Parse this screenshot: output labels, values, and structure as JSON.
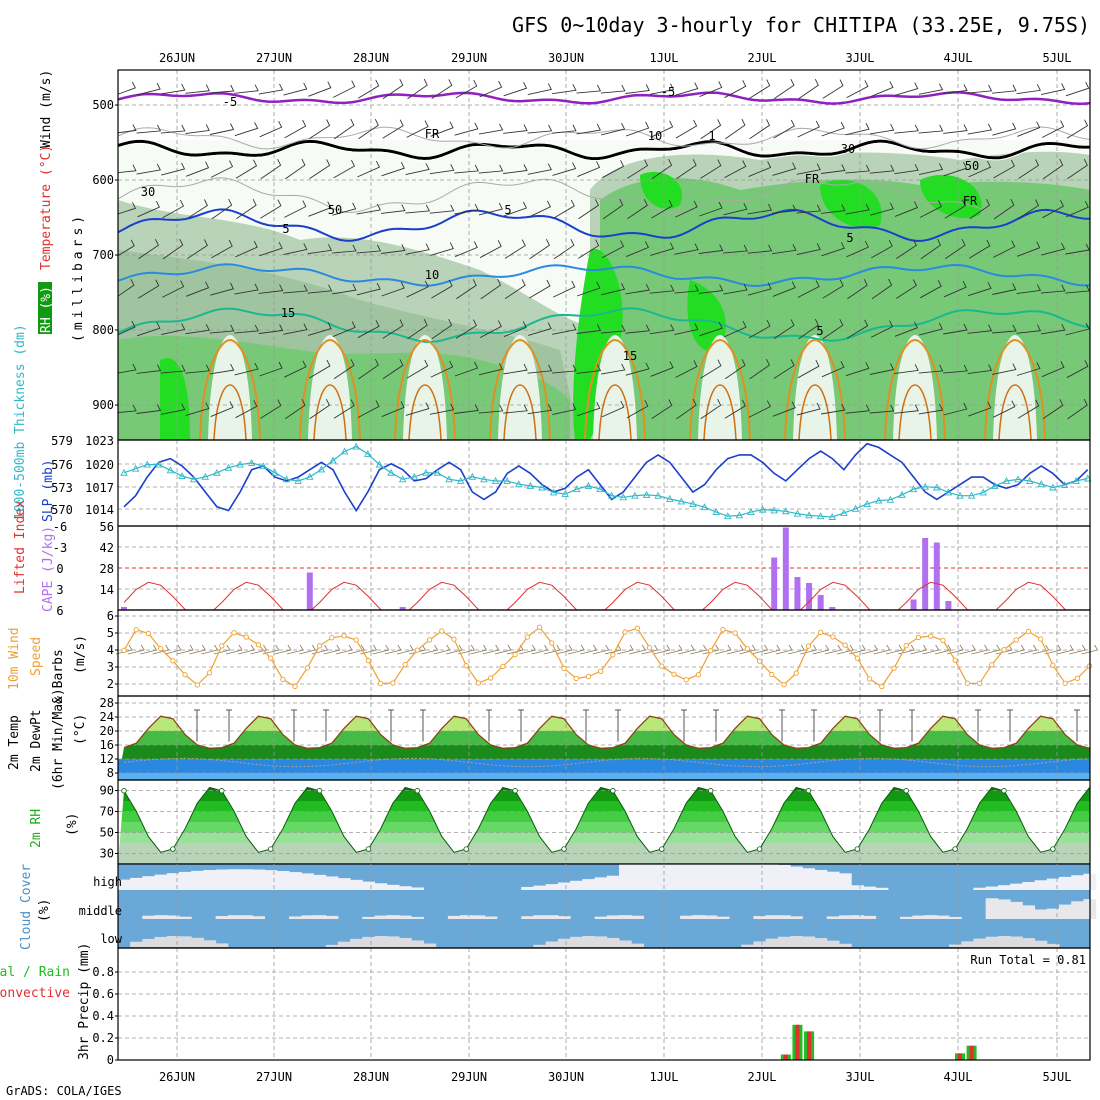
{
  "title": "GFS 0~10day 3-hourly for CHITIPA (33.25E, 9.75S)",
  "credit": "GrADS: COLA/IGES",
  "dates": [
    "26JUN",
    "27JUN",
    "28JUN",
    "29JUN",
    "30JUN",
    "1JUL",
    "2JUL",
    "3JUL",
    "4JUL",
    "5JUL"
  ],
  "colors": {
    "rh_light": "#e8f4e8",
    "rh_mid": "#b9d3b9",
    "rh_dark": "#77c977",
    "rh_bright": "#22dd22",
    "rh_deep": "#119911",
    "temp_purple": "#9020c0",
    "temp_blue1": "#1a3fcc",
    "temp_blue2": "#2a8ae0",
    "temp_teal": "#1ab890",
    "temp_orange": "#e09020",
    "slp": "#1a3fcc",
    "thickness": "#30b8c8",
    "cape": "#b070f0",
    "li": "#e03030",
    "wind10": "#f0a030",
    "cloud_blue": "#6aa8d8",
    "cloud_white": "#f0f0f8",
    "precip_total": "#22bb22",
    "precip_conv": "#e03030"
  },
  "panels": {
    "upper": {
      "ylabel": "(millibars)",
      "legend": [
        {
          "text": "Wind (m/s)",
          "color": "#000000"
        },
        {
          "text": "Temperature (°C)",
          "color": "#e03030"
        },
        {
          "text": "RH (%)",
          "color": "#119911"
        }
      ],
      "yticks": [
        "500",
        "600",
        "700",
        "800",
        "900"
      ],
      "contour_labels": [
        {
          "text": "-5",
          "color": "#9020c0"
        },
        {
          "text": "-5",
          "color": "#9020c0"
        },
        {
          "text": "FR",
          "color": "#000000"
        },
        {
          "text": "FR",
          "color": "#000000"
        },
        {
          "text": "FR",
          "color": "#000000"
        },
        {
          "text": "5",
          "color": "#1a3fcc"
        },
        {
          "text": "5",
          "color": "#1a3fcc"
        },
        {
          "text": "5",
          "color": "#1a3fcc"
        },
        {
          "text": "10",
          "color": "#2a8ae0"
        },
        {
          "text": "15",
          "color": "#1ab890"
        },
        {
          "text": "15",
          "color": "#1ab890"
        },
        {
          "text": "5",
          "color": "#1ab890"
        },
        {
          "text": "10",
          "color": "#888888"
        },
        {
          "text": "30",
          "color": "#888888"
        },
        {
          "text": "30",
          "color": "#888888"
        },
        {
          "text": "50",
          "color": "#888888"
        },
        {
          "text": "50",
          "color": "#888888"
        },
        {
          "text": "1",
          "color": "#000000"
        }
      ]
    },
    "slp": {
      "left_label": "1000-500mb Thickness (dm)",
      "right_label": "SLP (mb)",
      "left_ticks": [
        "579",
        "576",
        "573",
        "570"
      ],
      "right_ticks": [
        "1023",
        "1020",
        "1017",
        "1014"
      ]
    },
    "cape": {
      "left_label": "Lifted Index",
      "right_label": "CAPE (J/kg)",
      "left_ticks": [
        "-6",
        "-3",
        "0",
        "3",
        "6"
      ],
      "right_ticks": [
        "56",
        "42",
        "28",
        "14"
      ]
    },
    "wind10": {
      "label1": "10m Wind",
      "label2": "Speed",
      "label3": "& Barbs",
      "unit": "(m/s)",
      "yticks": [
        "6",
        "5",
        "4",
        "3",
        "2"
      ]
    },
    "temp2m": {
      "label1": "2m Temp",
      "label2": "2m DewPt",
      "label3": "(6hr Min/Max)",
      "unit": "(°C)",
      "yticks": [
        "28",
        "24",
        "20",
        "16",
        "12",
        "8"
      ]
    },
    "rh2m": {
      "label": "2m RH",
      "unit": "(%)",
      "yticks": [
        "90",
        "70",
        "50",
        "30"
      ]
    },
    "cloud": {
      "label": "Cloud Cover",
      "unit": "(%)",
      "levels": [
        "high",
        "middle",
        "low"
      ]
    },
    "precip": {
      "label1": "Total / Rain",
      "label2": "Convective",
      "label3": "3hr Precip (mm)",
      "yticks": [
        "0.8",
        "0.6",
        "0.4",
        "0.2",
        "0"
      ],
      "run_total": "Run Total = 0.81"
    }
  },
  "chart_data": [
    {
      "type": "line",
      "name_ref": "SLP",
      "x_unit": "3-hourly steps from 25JUN 12Z",
      "ylim": [
        1012,
        1023
      ],
      "values": [
        1014,
        1015.5,
        1018,
        1020,
        1020.5,
        1019.5,
        1018,
        1016,
        1014,
        1013.5,
        1016,
        1019,
        1019.5,
        1018,
        1017.5,
        1018,
        1019,
        1020,
        1019,
        1016,
        1013.5,
        1016,
        1019,
        1019.8,
        1019,
        1017.5,
        1017.8,
        1019,
        1020,
        1019,
        1016,
        1015,
        1016,
        1018.5,
        1019.5,
        1018.5,
        1017,
        1016,
        1016.5,
        1018,
        1019,
        1017,
        1015,
        1016,
        1018,
        1020,
        1021,
        1020,
        1018,
        1016,
        1017,
        1019,
        1020.5,
        1021,
        1021,
        1020,
        1018.5,
        1017.5,
        1019,
        1020.5,
        1021.5,
        1020.5,
        1019,
        1021,
        1022.5,
        1022,
        1021,
        1020,
        1018,
        1016,
        1015,
        1016,
        1017,
        1018,
        1018,
        1017,
        1016.5,
        1017,
        1018.5,
        1019.5,
        1018.5,
        1017,
        1017.5,
        1019,
        1019.5,
        1018,
        1016,
        1016.5,
        1018
      ]
    },
    {
      "type": "line",
      "name_ref": "1000-500mb Thickness",
      "ylim": [
        568.5,
        579
      ],
      "values": [
        575,
        575.5,
        576,
        576,
        575.3,
        574.6,
        574.2,
        574.5,
        575,
        575.6,
        576,
        576.2,
        575.8,
        575,
        574.2,
        574,
        574.5,
        575.4,
        576.5,
        577.6,
        578.2,
        577.3,
        576,
        575,
        574.2,
        574.5,
        575,
        575,
        574.2,
        574,
        574.5,
        574.2,
        574,
        574,
        573.6,
        573.4,
        573.2,
        572.6,
        572.4,
        573,
        573.4,
        573,
        572.2,
        572,
        572.2,
        572.3,
        572.2,
        571.8,
        571.5,
        571.2,
        570.8,
        570.2,
        569.7,
        569.8,
        570.2,
        570.5,
        570.4,
        570.3,
        570,
        569.8,
        569.7,
        569.6,
        570.1,
        570.6,
        571.2,
        571.6,
        571.7,
        572.3,
        573,
        573.3,
        573.2,
        572.6,
        572.2,
        572.2,
        572.6,
        573.4,
        574,
        574.2,
        574,
        573.6,
        573.2,
        573.5,
        574,
        574.3,
        574.1,
        573.6,
        573.3,
        573.6,
        574.2
      ]
    },
    {
      "type": "bar",
      "name_ref": "CAPE",
      "ylim": [
        0,
        56
      ],
      "values": [
        2,
        0,
        0,
        0,
        0,
        0,
        0,
        0,
        0,
        0,
        0,
        0,
        0,
        0,
        0,
        0,
        25,
        0,
        0,
        0,
        0,
        0,
        0,
        0,
        2,
        0,
        0,
        0,
        0,
        0,
        0,
        0,
        0,
        0,
        0,
        0,
        0,
        0,
        0,
        0,
        0,
        0,
        0,
        0,
        0,
        0,
        0,
        0,
        0,
        0,
        0,
        0,
        0,
        0,
        0,
        0,
        35,
        55,
        22,
        18,
        10,
        2,
        0,
        0,
        0,
        0,
        0,
        0,
        7,
        48,
        45,
        6,
        0,
        0,
        0,
        0,
        0,
        0,
        0,
        0,
        0,
        0,
        0,
        0,
        0,
        0,
        0,
        0,
        0,
        0,
        0,
        0,
        0,
        0,
        0,
        0,
        0,
        0,
        0,
        0
      ]
    },
    {
      "type": "bar",
      "name_ref": "Cloud Cover (3 levels)",
      "levels": [
        "high",
        "middle",
        "low"
      ]
    },
    {
      "type": "bar",
      "name_ref": "3hr Precip (mm)",
      "ylim": [
        0,
        1.0
      ],
      "bars": [
        {
          "x": 57,
          "total": 0.05
        },
        {
          "x": 58,
          "total": 0.32
        },
        {
          "x": 59,
          "total": 0.26
        },
        {
          "x": 72,
          "total": 0.06
        },
        {
          "x": 73,
          "total": 0.13
        }
      ],
      "run_total": 0.81
    }
  ]
}
